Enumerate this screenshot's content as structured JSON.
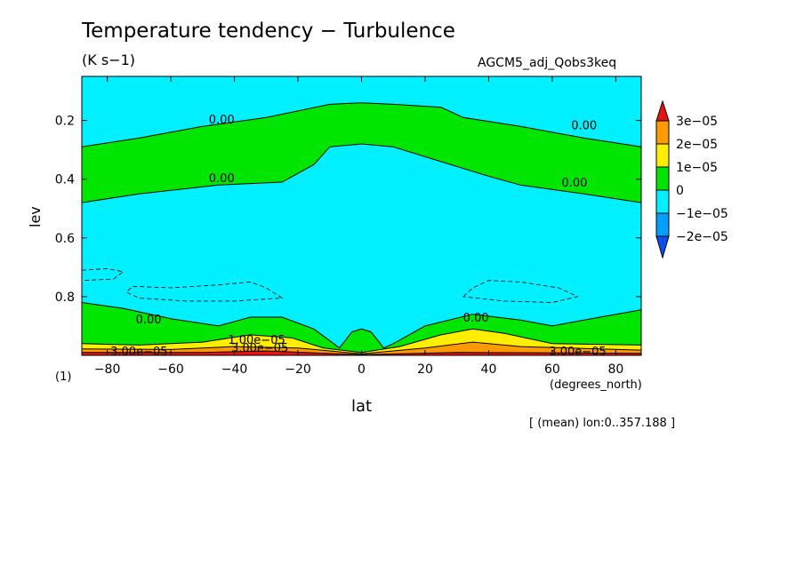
{
  "header": {
    "title": "Temperature tendency − Turbulence",
    "units": "(K s−1)",
    "experiment": "AGCM5_adj_Qobs3keq"
  },
  "footer": {
    "page_number": "(1)",
    "x_unit": "(degrees_north)",
    "note": "[ (mean) lon:0..357.188 ]"
  },
  "chart_data": {
    "type": "contour",
    "xlabel": "lat",
    "ylabel": "lev",
    "xlim": [
      -88,
      88
    ],
    "ylim": [
      1.0,
      0.05
    ],
    "x_ticks": [
      -80,
      -60,
      -40,
      -20,
      0,
      20,
      40,
      60,
      80
    ],
    "x_tick_labels": [
      "−80",
      "−60",
      "−40",
      "−20",
      "0",
      "20",
      "40",
      "60",
      "80"
    ],
    "y_ticks": [
      0.2,
      0.4,
      0.6,
      0.8
    ],
    "y_tick_labels": [
      "0.2",
      "0.4",
      "0.6",
      "0.8"
    ],
    "colorbar": {
      "levels": [
        "3e−05",
        "2e−05",
        "1e−05",
        "0",
        "−1e−05",
        "−2e−05"
      ],
      "colors": [
        "#e61414",
        "#ff9a00",
        "#ffee00",
        "#00e600",
        "#00f0ff",
        "#00a0ff",
        "#0a50f0"
      ]
    },
    "background_color": "#00f0ff",
    "regions": [
      {
        "name": "upper-positive-band",
        "color": "#00e600",
        "upper": [
          [
            -88,
            0.29
          ],
          [
            -70,
            0.26
          ],
          [
            -50,
            0.22
          ],
          [
            -30,
            0.19
          ],
          [
            -10,
            0.145
          ],
          [
            0,
            0.14
          ],
          [
            10,
            0.145
          ],
          [
            25,
            0.155
          ],
          [
            32,
            0.19
          ],
          [
            50,
            0.22
          ],
          [
            70,
            0.26
          ],
          [
            88,
            0.29
          ]
        ],
        "lower": [
          [
            -88,
            0.48
          ],
          [
            -70,
            0.45
          ],
          [
            -45,
            0.42
          ],
          [
            -25,
            0.41
          ],
          [
            -15,
            0.35
          ],
          [
            -10,
            0.29
          ],
          [
            0,
            0.28
          ],
          [
            10,
            0.29
          ],
          [
            25,
            0.34
          ],
          [
            40,
            0.39
          ],
          [
            50,
            0.42
          ],
          [
            70,
            0.45
          ],
          [
            88,
            0.48
          ]
        ]
      },
      {
        "name": "lower-positive-band",
        "color": "#00e600",
        "upper": [
          [
            -88,
            0.82
          ],
          [
            -75,
            0.84
          ],
          [
            -60,
            0.875
          ],
          [
            -45,
            0.9
          ],
          [
            -35,
            0.87
          ],
          [
            -25,
            0.87
          ],
          [
            -15,
            0.91
          ],
          [
            -10,
            0.95
          ],
          [
            -7,
            0.975
          ],
          [
            -3,
            0.92
          ],
          [
            0,
            0.91
          ],
          [
            3,
            0.92
          ],
          [
            7,
            0.975
          ],
          [
            10,
            0.96
          ],
          [
            20,
            0.9
          ],
          [
            35,
            0.86
          ],
          [
            50,
            0.88
          ],
          [
            60,
            0.9
          ],
          [
            75,
            0.87
          ],
          [
            88,
            0.845
          ]
        ],
        "lower": [
          [
            -88,
            1.0
          ],
          [
            88,
            1.0
          ]
        ]
      },
      {
        "name": "lower-yellow-layer",
        "color": "#ffee00",
        "upper": [
          [
            -88,
            0.96
          ],
          [
            -70,
            0.965
          ],
          [
            -50,
            0.955
          ],
          [
            -35,
            0.93
          ],
          [
            -22,
            0.94
          ],
          [
            -12,
            0.975
          ],
          [
            0,
            0.99
          ],
          [
            12,
            0.97
          ],
          [
            25,
            0.93
          ],
          [
            35,
            0.91
          ],
          [
            45,
            0.925
          ],
          [
            60,
            0.96
          ],
          [
            88,
            0.965
          ]
        ],
        "lower": [
          [
            -88,
            1.0
          ],
          [
            88,
            1.0
          ]
        ]
      },
      {
        "name": "lower-orange-layer",
        "color": "#ff9a00",
        "upper": [
          [
            -88,
            0.978
          ],
          [
            -60,
            0.98
          ],
          [
            -40,
            0.97
          ],
          [
            -20,
            0.975
          ],
          [
            0,
            0.995
          ],
          [
            20,
            0.975
          ],
          [
            35,
            0.955
          ],
          [
            50,
            0.97
          ],
          [
            88,
            0.982
          ]
        ],
        "lower": [
          [
            -88,
            1.0
          ],
          [
            88,
            1.0
          ]
        ]
      },
      {
        "name": "lower-red-layer",
        "color": "#e61414",
        "upper": [
          [
            -88,
            0.99
          ],
          [
            -50,
            0.99
          ],
          [
            -30,
            0.985
          ],
          [
            0,
            0.998
          ],
          [
            30,
            0.99
          ],
          [
            88,
            0.993
          ]
        ],
        "lower": [
          [
            -88,
            1.0
          ],
          [
            88,
            1.0
          ]
        ]
      }
    ],
    "negative_contours": [
      {
        "points": [
          [
            -88,
            0.71
          ],
          [
            -80,
            0.705
          ],
          [
            -75,
            0.715
          ],
          [
            -78,
            0.74
          ],
          [
            -88,
            0.745
          ]
        ],
        "closed": false
      },
      {
        "points": [
          [
            -72,
            0.765
          ],
          [
            -60,
            0.77
          ],
          [
            -45,
            0.76
          ],
          [
            -35,
            0.75
          ],
          [
            -30,
            0.77
          ],
          [
            -25,
            0.805
          ],
          [
            -40,
            0.815
          ],
          [
            -55,
            0.815
          ],
          [
            -70,
            0.805
          ],
          [
            -74,
            0.785
          ]
        ],
        "closed": true
      },
      {
        "points": [
          [
            32,
            0.8
          ],
          [
            35,
            0.77
          ],
          [
            40,
            0.745
          ],
          [
            50,
            0.75
          ],
          [
            62,
            0.77
          ],
          [
            68,
            0.8
          ],
          [
            60,
            0.82
          ],
          [
            45,
            0.815
          ]
        ],
        "closed": true
      }
    ],
    "annotations": [
      {
        "text": "0.00",
        "x": -44,
        "y": 0.2
      },
      {
        "text": "0.00",
        "x": 70,
        "y": 0.22
      },
      {
        "text": "0.00",
        "x": -44,
        "y": 0.4
      },
      {
        "text": "0.00",
        "x": 67,
        "y": 0.415
      },
      {
        "text": "0.00",
        "x": -67,
        "y": 0.88
      },
      {
        "text": "0.00",
        "x": 36,
        "y": 0.875
      },
      {
        "text": "1.00e−05",
        "x": -33,
        "y": 0.95
      },
      {
        "text": "3.00e−05",
        "x": -32,
        "y": 0.978
      },
      {
        "text": "3.00e−05",
        "x": -70,
        "y": 0.99
      },
      {
        "text": "3.00e−05",
        "x": 68,
        "y": 0.99
      }
    ]
  }
}
